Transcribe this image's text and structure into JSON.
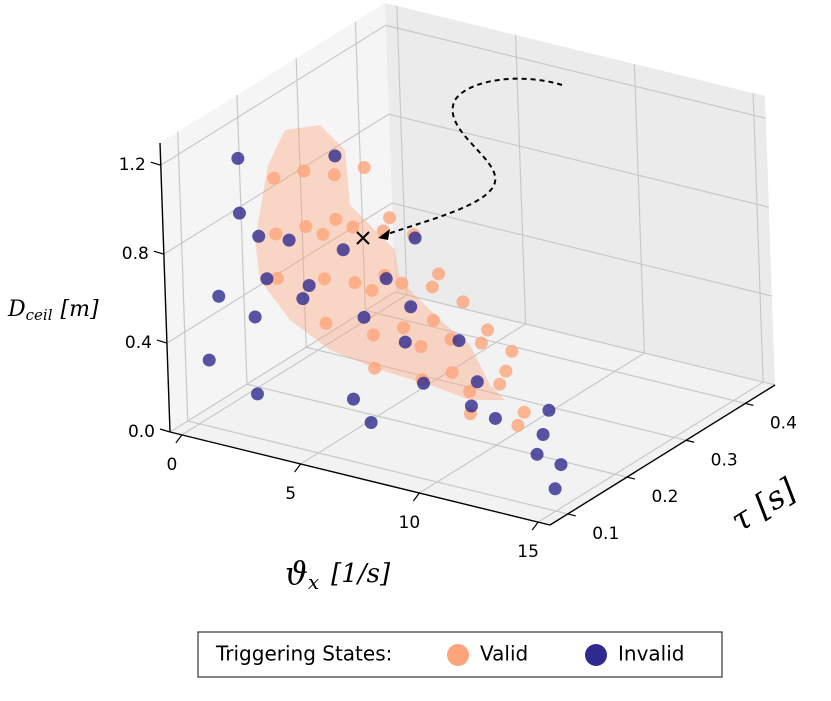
{
  "chart_data": {
    "type": "scatter3d",
    "x_label": {
      "main": "ϑ",
      "sub": "x",
      "unit": "[1/s]"
    },
    "y_label": {
      "main": "τ",
      "unit": "[s]"
    },
    "z_label": {
      "main": "D",
      "sub": "ceil",
      "unit": "[m]"
    },
    "xlim": [
      -0.5,
      15.5
    ],
    "xticks": [
      0,
      5,
      10,
      15
    ],
    "ylim": [
      0.07,
      0.45
    ],
    "yticks": [
      0.1,
      0.2,
      0.3,
      0.4
    ],
    "zlim": [
      0,
      1.3
    ],
    "zticks": [
      {
        "value": 0,
        "label": "0.0"
      },
      0.4,
      0.8,
      1.2
    ],
    "grid": true,
    "legend": {
      "title": "Triggering States:",
      "position": "bottom"
    },
    "series": [
      {
        "name": "Valid",
        "color": "#fca57a",
        "x": [
          3,
          3,
          3,
          5,
          5,
          5,
          7,
          7,
          7,
          9,
          9,
          11,
          11,
          13,
          3,
          3,
          5,
          5,
          7,
          7,
          9,
          9,
          11,
          12,
          3,
          3,
          5,
          5,
          7,
          7,
          9,
          10,
          3,
          4,
          5,
          6,
          7,
          8,
          9
        ],
        "y": [
          0.12,
          0.12,
          0.12,
          0.12,
          0.12,
          0.12,
          0.12,
          0.12,
          0.12,
          0.12,
          0.12,
          0.12,
          0.12,
          0.12,
          0.17,
          0.17,
          0.17,
          0.17,
          0.17,
          0.17,
          0.17,
          0.17,
          0.17,
          0.17,
          0.22,
          0.22,
          0.22,
          0.22,
          0.22,
          0.22,
          0.22,
          0.22,
          0.27,
          0.27,
          0.27,
          0.27,
          0.27,
          0.27,
          0.27
        ],
        "z": [
          1.15,
          0.9,
          0.7,
          0.95,
          0.75,
          0.55,
          0.75,
          0.55,
          0.4,
          0.55,
          0.4,
          0.4,
          0.3,
          0.3,
          1.1,
          0.85,
          0.9,
          0.65,
          0.7,
          0.5,
          0.5,
          0.35,
          0.35,
          0.25,
          1.0,
          0.8,
          0.8,
          0.6,
          0.6,
          0.45,
          0.4,
          0.3,
          0.95,
          0.75,
          0.7,
          0.55,
          0.45,
          0.35,
          0.28
        ]
      },
      {
        "name": "Invalid",
        "color": "#2e2a8f",
        "x": [
          1.5,
          2,
          1.5,
          1,
          2,
          1.5,
          2,
          2.5,
          1,
          0.5,
          3,
          4,
          5,
          6,
          7,
          8,
          9,
          10,
          11,
          12,
          13,
          14,
          15,
          2,
          4,
          6,
          3,
          1,
          0.5,
          2.5
        ],
        "y": [
          0.12,
          0.1,
          0.15,
          0.1,
          0.12,
          0.2,
          0.2,
          0.25,
          0.25,
          0.1,
          0.3,
          0.3,
          0.25,
          0.3,
          0.2,
          0.25,
          0.2,
          0.2,
          0.25,
          0.2,
          0.15,
          0.15,
          0.1,
          0.3,
          0.2,
          0.15,
          0.35,
          0.3,
          0.2,
          0.1
        ],
        "z": [
          1.2,
          1.0,
          0.8,
          0.6,
          0.5,
          0.7,
          0.45,
          0.6,
          0.4,
          0.3,
          0.4,
          0.3,
          0.25,
          0.2,
          0.2,
          0.15,
          0.15,
          0.12,
          0.1,
          0.1,
          0.12,
          0.1,
          0.1,
          0.2,
          0.05,
          0.08,
          0.5,
          0.9,
          0.5,
          0.2
        ]
      }
    ]
  }
}
